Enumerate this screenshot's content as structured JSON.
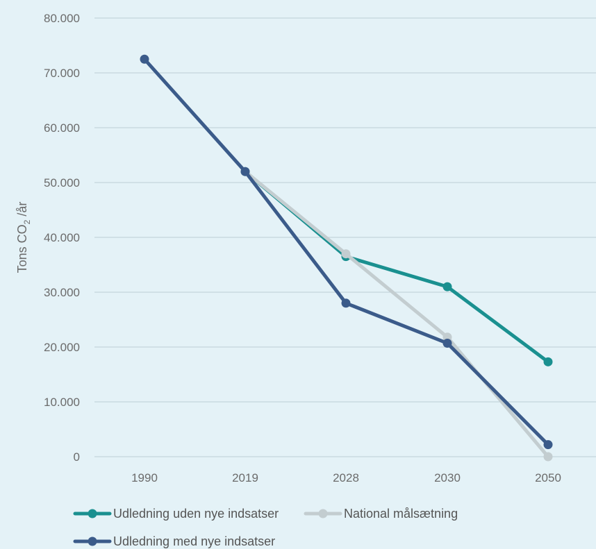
{
  "chart_data": {
    "type": "line",
    "categories": [
      "1990",
      "2019",
      "2028",
      "2030",
      "2050"
    ],
    "ylabel": {
      "main": "Tons CO",
      "sub": "2",
      "suffix": " /år"
    },
    "ylim": [
      0,
      80000
    ],
    "yticks": [
      {
        "value": 0,
        "label": "0"
      },
      {
        "value": 10000,
        "label": "10.000"
      },
      {
        "value": 20000,
        "label": "20.000"
      },
      {
        "value": 30000,
        "label": "30.000"
      },
      {
        "value": 40000,
        "label": "40.000"
      },
      {
        "value": 50000,
        "label": "50.000"
      },
      {
        "value": 60000,
        "label": "60.000"
      },
      {
        "value": 70000,
        "label": "70.000"
      },
      {
        "value": 80000,
        "label": "80.000"
      }
    ],
    "grid": true,
    "legend_position": "bottom",
    "series": [
      {
        "name": "Udledning uden nye indsatser",
        "color": "#1a9090",
        "values": [
          null,
          52000,
          36500,
          31000,
          17300
        ]
      },
      {
        "name": "National målsætning",
        "color": "#c3cdd0",
        "values": [
          null,
          52000,
          37000,
          21800,
          0
        ]
      },
      {
        "name": "Udledning med nye indsatser",
        "color": "#3b5b8a",
        "values": [
          72500,
          52000,
          28000,
          20700,
          2200
        ]
      }
    ]
  }
}
